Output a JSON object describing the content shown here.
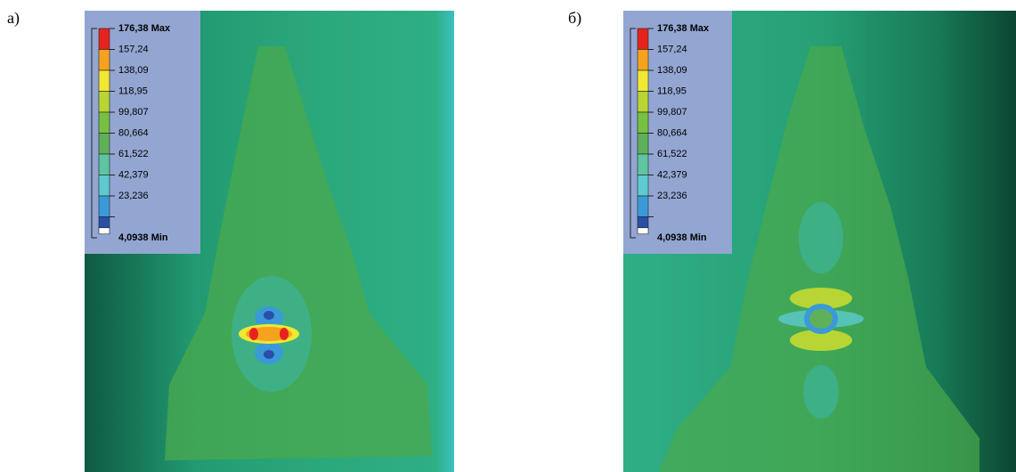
{
  "panels": [
    {
      "label": "а)",
      "legend": [
        "176,38 Max",
        "157,24",
        "138,09",
        "118,95",
        "99,807",
        "80,664",
        "61,522",
        "42,379",
        "23,236",
        "4,0938 Min"
      ]
    },
    {
      "label": "б)",
      "legend": [
        "176,38 Max",
        "157,24",
        "138,09",
        "118,95",
        "99,807",
        "80,664",
        "61,522",
        "42,379",
        "23,236",
        "4,0938 Min"
      ]
    }
  ]
}
